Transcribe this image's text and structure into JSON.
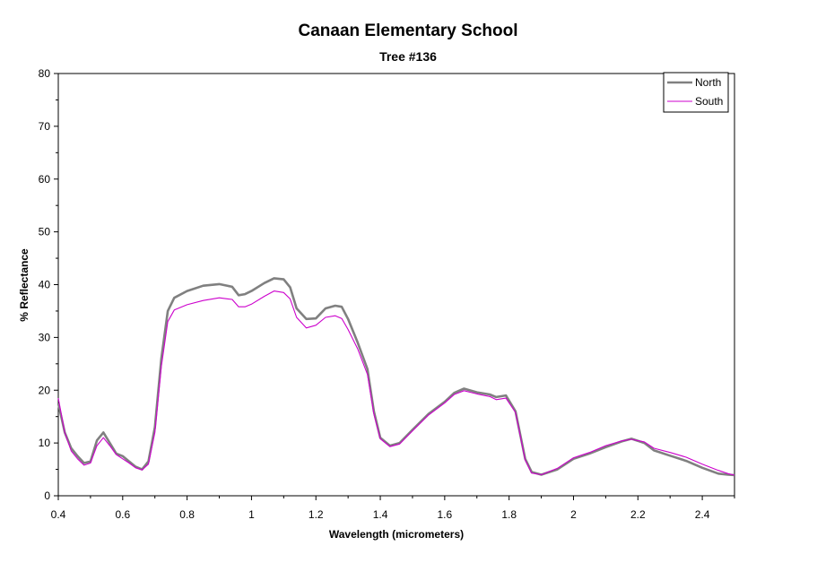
{
  "chart_data": {
    "type": "line",
    "title": "Canaan Elementary School",
    "subtitle": "Tree #136",
    "xlabel": "Wavelength (micrometers)",
    "ylabel": "% Reflectance",
    "xlim": [
      0.4,
      2.5
    ],
    "ylim": [
      0,
      80
    ],
    "x_ticks": [
      "0.4",
      "0.6",
      "0.8",
      "1",
      "1.2",
      "1.4",
      "1.6",
      "1.8",
      "2",
      "2.2",
      "2.4"
    ],
    "x_tick_values": [
      0.4,
      0.6,
      0.8,
      1.0,
      1.2,
      1.4,
      1.6,
      1.8,
      2.0,
      2.2,
      2.4
    ],
    "y_ticks": [
      "0",
      "10",
      "20",
      "30",
      "40",
      "50",
      "60",
      "70",
      "80"
    ],
    "y_tick_values": [
      0,
      10,
      20,
      30,
      40,
      50,
      60,
      70,
      80
    ],
    "grid": false,
    "legend_position": "top-right",
    "series": [
      {
        "name": "North",
        "color": "#808080",
        "points": [
          [
            0.4,
            17.5
          ],
          [
            0.42,
            12.0
          ],
          [
            0.44,
            9.0
          ],
          [
            0.46,
            7.5
          ],
          [
            0.48,
            6.2
          ],
          [
            0.5,
            6.5
          ],
          [
            0.52,
            10.5
          ],
          [
            0.54,
            12.0
          ],
          [
            0.56,
            10.0
          ],
          [
            0.58,
            8.0
          ],
          [
            0.6,
            7.5
          ],
          [
            0.62,
            6.5
          ],
          [
            0.64,
            5.5
          ],
          [
            0.66,
            5.0
          ],
          [
            0.68,
            6.5
          ],
          [
            0.7,
            13.0
          ],
          [
            0.72,
            26.0
          ],
          [
            0.74,
            35.0
          ],
          [
            0.76,
            37.5
          ],
          [
            0.8,
            38.8
          ],
          [
            0.85,
            39.8
          ],
          [
            0.9,
            40.1
          ],
          [
            0.94,
            39.6
          ],
          [
            0.96,
            38.0
          ],
          [
            0.98,
            38.2
          ],
          [
            1.0,
            38.8
          ],
          [
            1.04,
            40.3
          ],
          [
            1.07,
            41.2
          ],
          [
            1.1,
            41.0
          ],
          [
            1.12,
            39.5
          ],
          [
            1.14,
            35.5
          ],
          [
            1.17,
            33.5
          ],
          [
            1.2,
            33.6
          ],
          [
            1.23,
            35.5
          ],
          [
            1.26,
            36.0
          ],
          [
            1.28,
            35.8
          ],
          [
            1.3,
            33.5
          ],
          [
            1.33,
            29.0
          ],
          [
            1.36,
            24.0
          ],
          [
            1.38,
            16.0
          ],
          [
            1.4,
            11.0
          ],
          [
            1.43,
            9.5
          ],
          [
            1.46,
            10.0
          ],
          [
            1.5,
            12.5
          ],
          [
            1.55,
            15.5
          ],
          [
            1.6,
            17.8
          ],
          [
            1.63,
            19.5
          ],
          [
            1.66,
            20.3
          ],
          [
            1.7,
            19.6
          ],
          [
            1.74,
            19.2
          ],
          [
            1.76,
            18.7
          ],
          [
            1.79,
            19.0
          ],
          [
            1.82,
            16.0
          ],
          [
            1.85,
            7.0
          ],
          [
            1.87,
            4.5
          ],
          [
            1.9,
            4.0
          ],
          [
            1.95,
            5.0
          ],
          [
            2.0,
            7.0
          ],
          [
            2.05,
            8.0
          ],
          [
            2.1,
            9.2
          ],
          [
            2.15,
            10.3
          ],
          [
            2.18,
            10.8
          ],
          [
            2.22,
            10.0
          ],
          [
            2.25,
            8.6
          ],
          [
            2.3,
            7.6
          ],
          [
            2.35,
            6.6
          ],
          [
            2.4,
            5.3
          ],
          [
            2.45,
            4.2
          ],
          [
            2.48,
            4.0
          ],
          [
            2.5,
            3.9
          ]
        ]
      },
      {
        "name": "South",
        "color": "#cc00cc",
        "points": [
          [
            0.4,
            18.5
          ],
          [
            0.42,
            12.0
          ],
          [
            0.44,
            8.5
          ],
          [
            0.46,
            7.0
          ],
          [
            0.48,
            5.8
          ],
          [
            0.5,
            6.2
          ],
          [
            0.52,
            9.5
          ],
          [
            0.54,
            11.0
          ],
          [
            0.56,
            9.5
          ],
          [
            0.58,
            7.8
          ],
          [
            0.6,
            7.0
          ],
          [
            0.62,
            6.2
          ],
          [
            0.64,
            5.3
          ],
          [
            0.66,
            4.9
          ],
          [
            0.68,
            6.0
          ],
          [
            0.7,
            12.0
          ],
          [
            0.72,
            24.5
          ],
          [
            0.74,
            33.0
          ],
          [
            0.76,
            35.2
          ],
          [
            0.8,
            36.2
          ],
          [
            0.85,
            37.0
          ],
          [
            0.9,
            37.5
          ],
          [
            0.94,
            37.2
          ],
          [
            0.96,
            35.8
          ],
          [
            0.98,
            35.8
          ],
          [
            1.0,
            36.3
          ],
          [
            1.04,
            37.8
          ],
          [
            1.07,
            38.8
          ],
          [
            1.1,
            38.5
          ],
          [
            1.12,
            37.3
          ],
          [
            1.14,
            33.8
          ],
          [
            1.17,
            31.8
          ],
          [
            1.2,
            32.3
          ],
          [
            1.23,
            33.8
          ],
          [
            1.26,
            34.1
          ],
          [
            1.28,
            33.6
          ],
          [
            1.3,
            31.5
          ],
          [
            1.33,
            27.8
          ],
          [
            1.36,
            23.0
          ],
          [
            1.38,
            15.5
          ],
          [
            1.4,
            10.8
          ],
          [
            1.43,
            9.3
          ],
          [
            1.46,
            9.8
          ],
          [
            1.5,
            12.3
          ],
          [
            1.55,
            15.3
          ],
          [
            1.6,
            17.6
          ],
          [
            1.63,
            19.2
          ],
          [
            1.66,
            19.9
          ],
          [
            1.7,
            19.3
          ],
          [
            1.74,
            18.8
          ],
          [
            1.76,
            18.2
          ],
          [
            1.79,
            18.5
          ],
          [
            1.82,
            15.8
          ],
          [
            1.85,
            6.8
          ],
          [
            1.87,
            4.3
          ],
          [
            1.9,
            4.0
          ],
          [
            1.95,
            5.2
          ],
          [
            2.0,
            7.2
          ],
          [
            2.05,
            8.2
          ],
          [
            2.1,
            9.5
          ],
          [
            2.15,
            10.4
          ],
          [
            2.18,
            10.7
          ],
          [
            2.22,
            10.2
          ],
          [
            2.25,
            9.0
          ],
          [
            2.3,
            8.2
          ],
          [
            2.35,
            7.3
          ],
          [
            2.4,
            6.0
          ],
          [
            2.45,
            4.8
          ],
          [
            2.48,
            4.2
          ],
          [
            2.5,
            3.9
          ]
        ]
      }
    ]
  }
}
